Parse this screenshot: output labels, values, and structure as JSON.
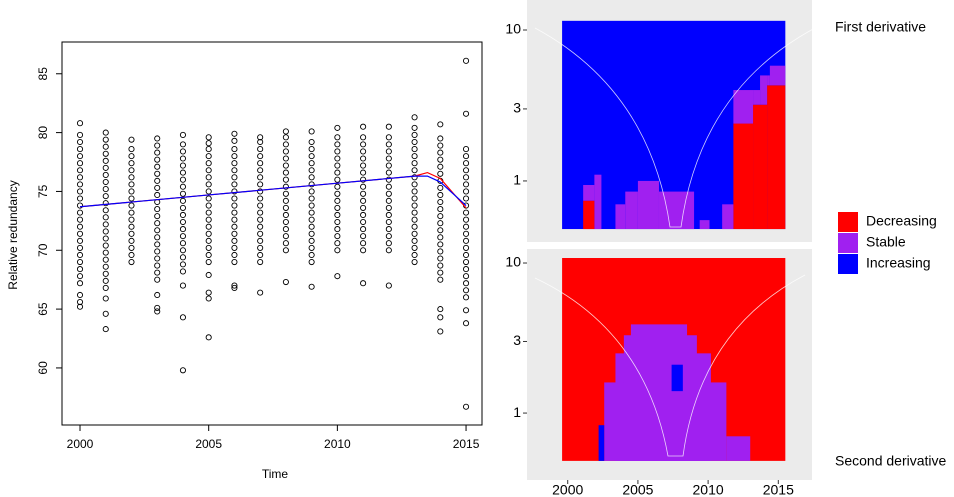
{
  "chart_data": [
    {
      "type": "strip",
      "xlabel": "Time",
      "ylabel": "Relative redundancy",
      "xlim": [
        1999.3,
        2015.62
      ],
      "ylim": [
        55.15,
        87.7
      ],
      "xticks": [
        2000,
        2005,
        2010,
        2015
      ],
      "yticks": [
        60,
        65,
        70,
        75,
        80,
        85
      ],
      "x": [
        2000,
        2001,
        2002,
        2003,
        2004,
        2005,
        2006,
        2007,
        2008,
        2009,
        2010,
        2011,
        2012,
        2013,
        2014,
        2015
      ],
      "values": [
        [
          65.2,
          65.6,
          66.2,
          67.2,
          67.8,
          68.4,
          69,
          69.6,
          70.2,
          70.8,
          71.4,
          72,
          72.6,
          73.2,
          73.8,
          74.4,
          75,
          75.6,
          76.2,
          76.8,
          77.4,
          78,
          78.6,
          79.2,
          79.8,
          80.8
        ],
        [
          63.3,
          64.6,
          65.9,
          66.8,
          67.4,
          68,
          68.6,
          69.2,
          69.8,
          70.4,
          71,
          71.6,
          72.2,
          72.8,
          73.4,
          74,
          74.6,
          75.2,
          75.8,
          76.4,
          77,
          77.6,
          78.2,
          78.8,
          79.4,
          80
        ],
        [
          69,
          69.6,
          70.2,
          70.8,
          71.4,
          72,
          72.6,
          73.2,
          73.8,
          74.4,
          75,
          75.6,
          76.2,
          76.8,
          77.4,
          78,
          78.6,
          79.4
        ],
        [
          64.8,
          65.1,
          66.2,
          67.5,
          68.1,
          68.7,
          69.3,
          69.9,
          70.5,
          71.1,
          71.7,
          72.3,
          72.9,
          73.5,
          74.1,
          74.7,
          75.3,
          75.9,
          76.5,
          77.1,
          77.7,
          78.3,
          78.9,
          79.5
        ],
        [
          59.8,
          64.3,
          67,
          68.2,
          68.8,
          69.4,
          70,
          70.6,
          71.2,
          71.8,
          72.4,
          73,
          73.6,
          74.2,
          74.8,
          75.4,
          76,
          76.6,
          77.2,
          77.8,
          78.4,
          79,
          79.8
        ],
        [
          62.6,
          65.9,
          66.4,
          67.9,
          69,
          69.6,
          70.2,
          70.8,
          71.4,
          72,
          72.6,
          73.2,
          73.8,
          74.4,
          75,
          75.6,
          76.2,
          76.8,
          77.4,
          78,
          78.6,
          79.1,
          79.6
        ],
        [
          66.8,
          67,
          69,
          69.6,
          70.2,
          70.8,
          71.4,
          72,
          72.6,
          73.2,
          73.8,
          74.4,
          75,
          75.6,
          76.2,
          76.8,
          77.4,
          78,
          78.6,
          79.3,
          79.9
        ],
        [
          66.4,
          69,
          69.6,
          70.2,
          70.8,
          71.4,
          72,
          72.6,
          73.2,
          73.8,
          74.4,
          75,
          75.6,
          76.2,
          76.8,
          77.4,
          78,
          78.6,
          79.2,
          79.6
        ],
        [
          67.3,
          70,
          70.6,
          71.2,
          71.8,
          72.4,
          73,
          73.6,
          74.2,
          74.8,
          75.4,
          76,
          76.6,
          77.2,
          77.8,
          78.4,
          79,
          79.6,
          80.1
        ],
        [
          66.9,
          69,
          69.6,
          70.2,
          70.8,
          71.4,
          72,
          72.6,
          73.2,
          73.8,
          74.4,
          75,
          75.6,
          76.2,
          76.8,
          77.4,
          78,
          78.6,
          79.2,
          80.1
        ],
        [
          67.8,
          70,
          70.6,
          71.2,
          71.8,
          72.4,
          73,
          73.6,
          74.2,
          74.8,
          75.4,
          76,
          76.6,
          77.2,
          77.8,
          78.4,
          79,
          79.6,
          80.4
        ],
        [
          67.2,
          70,
          70.6,
          71.2,
          71.8,
          72.4,
          73,
          73.6,
          74.2,
          74.8,
          75.4,
          76,
          76.6,
          77.2,
          77.8,
          78.4,
          79,
          79.6,
          80.5
        ],
        [
          67,
          70,
          70.6,
          71.2,
          71.8,
          72.4,
          73,
          73.6,
          74.2,
          74.8,
          75.4,
          76,
          76.6,
          77.2,
          77.8,
          78.4,
          79,
          79.6,
          80.5
        ],
        [
          69,
          69.6,
          70.2,
          70.8,
          71.4,
          72,
          72.6,
          73.2,
          73.8,
          74.4,
          75,
          75.6,
          76.2,
          76.8,
          77.4,
          78,
          78.6,
          79.2,
          79.8,
          80.4,
          81.3
        ],
        [
          63.1,
          64.3,
          65,
          67.5,
          68.1,
          68.7,
          69.3,
          69.9,
          70.5,
          71.1,
          71.7,
          72.3,
          72.9,
          73.5,
          74.1,
          74.7,
          75.3,
          75.9,
          76.5,
          77.1,
          77.7,
          78.3,
          78.9,
          79.5,
          80.7
        ],
        [
          56.7,
          63.8,
          64.9,
          66,
          66.6,
          67.2,
          67.8,
          68.4,
          69,
          69.6,
          70.2,
          70.8,
          71.4,
          72,
          72.6,
          73.2,
          73.8,
          74.4,
          75,
          75.6,
          76.2,
          76.8,
          77.4,
          78,
          78.6,
          81.6,
          86.1
        ]
      ],
      "lines": [
        {
          "color": "#ff0000",
          "x": [
            2000,
            2005,
            2010,
            2013,
            2013.5,
            2014,
            2015
          ],
          "values": [
            73.7,
            74.7,
            75.7,
            76.3,
            76.6,
            76.1,
            73.6
          ]
        },
        {
          "color": "#0000ff",
          "x": [
            2000,
            2005,
            2010,
            2013,
            2013.5,
            2014,
            2015
          ],
          "values": [
            73.7,
            74.7,
            75.7,
            76.3,
            76.3,
            75.8,
            73.8
          ]
        }
      ]
    },
    {
      "type": "tiles",
      "title": "First derivative",
      "log_y": true,
      "xlim": [
        1997.1,
        2017.4
      ],
      "ylim": [
        0.394,
        15.8
      ],
      "yticks": [
        1,
        3,
        10
      ],
      "series": [
        {
          "name": "Decreasing",
          "color": "#ff0000",
          "regions": [
            {
              "x": [
                2011.8,
                2013.2
              ],
              "y": [
                0.48,
                2.4
              ]
            },
            {
              "x": [
                2013.2,
                2014.2
              ],
              "y": [
                0.48,
                3.2
              ]
            },
            {
              "x": [
                2014.2,
                2015.5
              ],
              "y": [
                0.48,
                4.3
              ]
            },
            {
              "x": [
                2001.1,
                2001.9
              ],
              "y": [
                0.48,
                0.74
              ]
            }
          ]
        },
        {
          "name": "Stable",
          "color": "#a020f0",
          "regions": [
            {
              "x": [
                2011.8,
                2013.2
              ],
              "y": [
                2.4,
                4.0
              ]
            },
            {
              "x": [
                2013.2,
                2013.7
              ],
              "y": [
                3.2,
                4.0
              ]
            },
            {
              "x": [
                2013.7,
                2014.2
              ],
              "y": [
                3.2,
                5.0
              ]
            },
            {
              "x": [
                2014.2,
                2014.4
              ],
              "y": [
                4.3,
                5.0
              ]
            },
            {
              "x": [
                2014.4,
                2015.5
              ],
              "y": [
                4.3,
                5.8
              ]
            },
            {
              "x": [
                2011,
                2011.8
              ],
              "y": [
                0.48,
                0.7
              ]
            },
            {
              "x": [
                2001.1,
                2001.9
              ],
              "y": [
                0.74,
                0.94
              ]
            },
            {
              "x": [
                2001.9,
                2002.4
              ],
              "y": [
                0.48,
                1.1
              ]
            },
            {
              "x": [
                2003.4,
                2004.1
              ],
              "y": [
                0.48,
                0.7
              ]
            },
            {
              "x": [
                2004.1,
                2005
              ],
              "y": [
                0.48,
                0.85
              ]
            },
            {
              "x": [
                2005,
                2006.5
              ],
              "y": [
                0.48,
                1.0
              ]
            },
            {
              "x": [
                2006.5,
                2009
              ],
              "y": [
                0.48,
                0.85
              ]
            },
            {
              "x": [
                2009.4,
                2010.1
              ],
              "y": [
                0.48,
                0.55
              ]
            }
          ]
        },
        {
          "name": "Increasing",
          "color": "#0000ff",
          "regions": [
            {
              "x": [
                1999.6,
                2015.5
              ],
              "y": [
                0.48,
                11.5
              ]
            }
          ]
        }
      ]
    },
    {
      "type": "tiles",
      "title": "Second derivative",
      "log_y": true,
      "xlim": [
        1997.1,
        2017.4
      ],
      "ylim": [
        0.358,
        12.4
      ],
      "yticks": [
        1,
        3,
        10
      ],
      "xticks": [
        2000,
        2005,
        2010,
        2015
      ],
      "series": [
        {
          "color": "#ff0000",
          "regions": [
            {
              "x": [
                1999.6,
                2015.5
              ],
              "y": [
                0.48,
                10.8
              ]
            }
          ]
        },
        {
          "color": "#a020f0",
          "regions": [
            {
              "x": [
                2002.6,
                2011.3
              ],
              "y": [
                0.48,
                1.6
              ]
            },
            {
              "x": [
                2003.4,
                2010.2
              ],
              "y": [
                0.48,
                2.5
              ]
            },
            {
              "x": [
                2004,
                2009.2
              ],
              "y": [
                0.48,
                3.3
              ]
            },
            {
              "x": [
                2004.5,
                2008.5
              ],
              "y": [
                0.48,
                3.9
              ]
            },
            {
              "x": [
                2011.3,
                2013
              ],
              "y": [
                0.48,
                0.7
              ]
            }
          ]
        },
        {
          "color": "#0000ff",
          "regions": [
            {
              "x": [
                2007.4,
                2008.2
              ],
              "y": [
                1.4,
                2.1
              ]
            },
            {
              "x": [
                2002.2,
                2002.6
              ],
              "y": [
                0.48,
                0.83
              ]
            }
          ]
        }
      ]
    }
  ]
}
